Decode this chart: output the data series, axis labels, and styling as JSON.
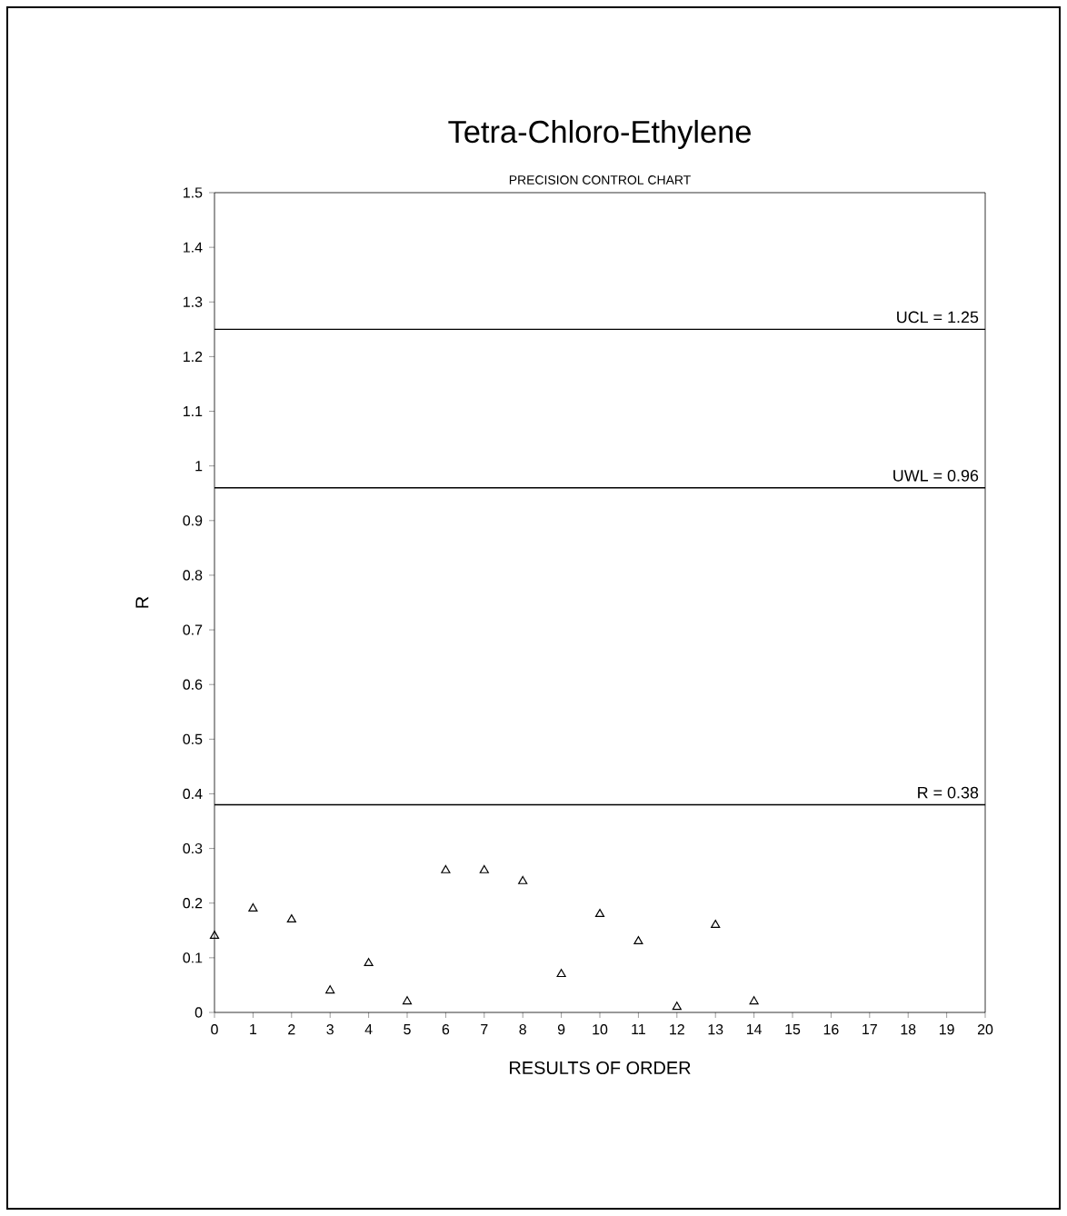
{
  "chart_data": {
    "type": "scatter",
    "title": "Tetra-Chloro-Ethylene",
    "subtitle": "PRECISION CONTROL CHART",
    "xlabel": "RESULTS OF ORDER",
    "ylabel": "R",
    "x": [
      0,
      1,
      2,
      3,
      4,
      5,
      6,
      7,
      8,
      9,
      10,
      11,
      12,
      13,
      14
    ],
    "values": [
      0.14,
      0.19,
      0.17,
      0.04,
      0.09,
      0.02,
      0.26,
      0.26,
      0.24,
      0.07,
      0.18,
      0.13,
      0.01,
      0.16,
      0.02
    ],
    "color": "#000000",
    "marker": "triangle",
    "xlim": [
      0,
      20
    ],
    "xticks": [
      0,
      1,
      2,
      3,
      4,
      5,
      6,
      7,
      8,
      9,
      10,
      11,
      12,
      13,
      14,
      15,
      16,
      17,
      18,
      19,
      20
    ],
    "ylim": [
      0,
      1.5
    ],
    "yticks": [
      0,
      0.1,
      0.2,
      0.3,
      0.4,
      0.5,
      0.6,
      0.7,
      0.8,
      0.9,
      1,
      1.1,
      1.2,
      1.3,
      1.4,
      1.5
    ],
    "ref_lines": [
      {
        "axis": "y",
        "value": 1.25,
        "label": "UCL = 1.25",
        "color": "#000000"
      },
      {
        "axis": "y",
        "value": 0.96,
        "label": "UWL = 0.96",
        "color": "#000000"
      },
      {
        "axis": "y",
        "value": 0.38,
        "label": "R = 0.38",
        "color": "#000000"
      }
    ],
    "grid": false
  }
}
